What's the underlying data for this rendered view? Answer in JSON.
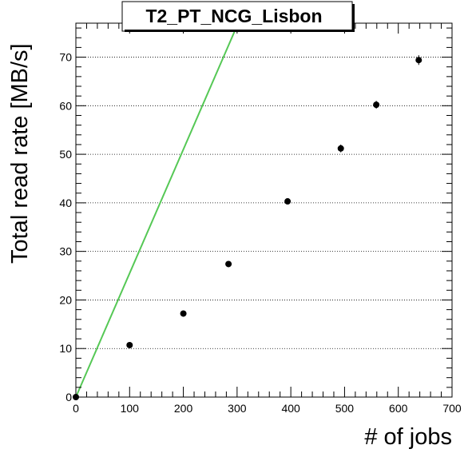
{
  "chart_data": {
    "type": "scatter",
    "title": "T2_PT_NCG_Lisbon",
    "xlabel": "# of jobs",
    "ylabel": "Total read rate [MB/s]",
    "xlim": [
      0,
      700
    ],
    "ylim": [
      0,
      77
    ],
    "x_ticks": [
      "0",
      "100",
      "200",
      "300",
      "400",
      "500",
      "600",
      "700"
    ],
    "y_ticks": [
      "0",
      "10",
      "20",
      "30",
      "40",
      "50",
      "60",
      "70"
    ],
    "grid": {
      "horizontal": true,
      "vertical": false,
      "style": "dotted"
    },
    "series": [
      {
        "type": "scatter",
        "color": "#000000",
        "points": [
          {
            "x": 0,
            "y": 0,
            "yerr": 0.5
          },
          {
            "x": 100,
            "y": 10.7,
            "yerr": 0.6
          },
          {
            "x": 200,
            "y": 17.2,
            "yerr": 0.6
          },
          {
            "x": 284,
            "y": 27.4,
            "yerr": 0.6
          },
          {
            "x": 394,
            "y": 40.3,
            "yerr": 0.6
          },
          {
            "x": 493,
            "y": 51.2,
            "yerr": 0.8
          },
          {
            "x": 559,
            "y": 60.2,
            "yerr": 0.8
          },
          {
            "x": 638,
            "y": 69.4,
            "yerr": 1.0
          }
        ]
      },
      {
        "type": "line",
        "color": "#55c855",
        "x": [
          0,
          302
        ],
        "y": [
          0,
          77
        ]
      }
    ]
  }
}
